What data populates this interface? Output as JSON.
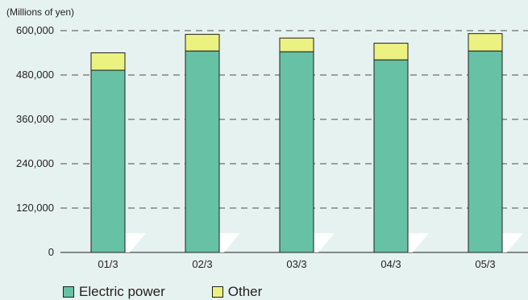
{
  "chart_data": {
    "type": "bar",
    "stacked": true,
    "unit_label": "(Millions of yen)",
    "categories": [
      "01/3",
      "02/3",
      "03/3",
      "04/3",
      "05/3"
    ],
    "series": [
      {
        "name": "Electric power",
        "values": [
          493000,
          545000,
          543000,
          521000,
          545000
        ],
        "color": "#67c1a5"
      },
      {
        "name": "Other",
        "values": [
          47000,
          45000,
          37000,
          45000,
          47000
        ],
        "color": "#ecf27f"
      }
    ],
    "yticks": [
      0,
      120000,
      240000,
      360000,
      480000,
      600000
    ],
    "ytick_labels": [
      "0",
      "120,000",
      "240,000",
      "360,000",
      "480,000",
      "600,000"
    ],
    "ylim": [
      0,
      600000
    ],
    "grid": true,
    "legend_position": "bottom"
  }
}
